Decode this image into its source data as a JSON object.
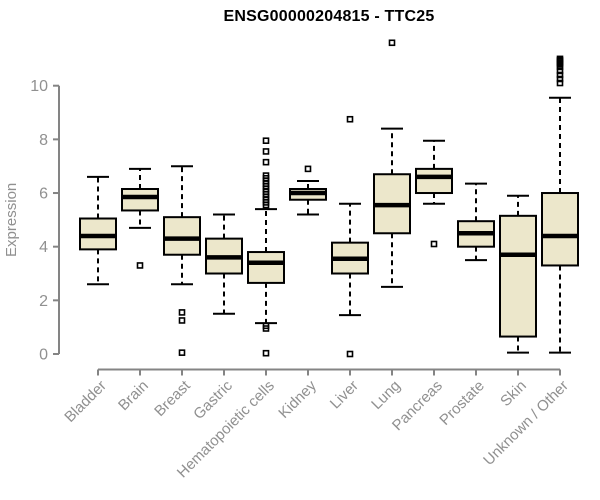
{
  "chart_data": {
    "type": "boxplot",
    "title": "ENSG00000204815 - TTC25",
    "ylabel": "Expression",
    "xlabel": "",
    "ylim": [
      0,
      10
    ],
    "yticks": [
      0,
      2,
      4,
      6,
      8,
      10
    ],
    "grid": false,
    "legend": "none",
    "categories": [
      "Bladder",
      "Brain",
      "Breast",
      "Gastric",
      "Hematopoietic cells",
      "Kidney",
      "Liver",
      "Lung",
      "Pancreas",
      "Prostate",
      "Skin",
      "Unknown / Other"
    ],
    "series": [
      {
        "name": "Bladder",
        "whisker_low": 2.6,
        "q1": 3.9,
        "median": 4.4,
        "q3": 5.05,
        "whisker_high": 6.6,
        "outliers": []
      },
      {
        "name": "Brain",
        "whisker_low": 4.7,
        "q1": 5.35,
        "median": 5.85,
        "q3": 6.15,
        "whisker_high": 6.9,
        "outliers": [
          3.3
        ]
      },
      {
        "name": "Breast",
        "whisker_low": 2.6,
        "q1": 3.7,
        "median": 4.3,
        "q3": 5.1,
        "whisker_high": 7.0,
        "outliers": [
          1.55,
          1.25,
          0.05
        ]
      },
      {
        "name": "Gastric",
        "whisker_low": 1.5,
        "q1": 3.0,
        "median": 3.6,
        "q3": 4.3,
        "whisker_high": 5.2,
        "outliers": []
      },
      {
        "name": "Hematopoietic cells",
        "whisker_low": 1.15,
        "q1": 2.65,
        "median": 3.4,
        "q3": 3.8,
        "whisker_high": 5.4,
        "outliers": [
          7.95,
          7.55,
          7.15,
          6.65,
          6.55,
          6.45,
          6.35,
          6.25,
          6.15,
          6.05,
          5.95,
          5.85,
          5.75,
          5.65,
          5.55,
          1.05,
          0.95,
          0.03
        ]
      },
      {
        "name": "Kidney",
        "whisker_low": 5.2,
        "q1": 5.75,
        "median": 6.0,
        "q3": 6.15,
        "whisker_high": 6.45,
        "outliers": [
          6.9
        ]
      },
      {
        "name": "Liver",
        "whisker_low": 1.45,
        "q1": 3.0,
        "median": 3.55,
        "q3": 4.15,
        "whisker_high": 5.6,
        "outliers": [
          8.75,
          0.0
        ]
      },
      {
        "name": "Lung",
        "whisker_low": 2.5,
        "q1": 4.5,
        "median": 5.55,
        "q3": 6.7,
        "whisker_high": 8.4,
        "outliers": [
          11.6
        ]
      },
      {
        "name": "Pancreas",
        "whisker_low": 5.6,
        "q1": 6.0,
        "median": 6.6,
        "q3": 6.9,
        "whisker_high": 7.95,
        "outliers": [
          4.1
        ]
      },
      {
        "name": "Prostate",
        "whisker_low": 3.5,
        "q1": 4.0,
        "median": 4.5,
        "q3": 4.95,
        "whisker_high": 6.35,
        "outliers": []
      },
      {
        "name": "Skin",
        "whisker_low": 0.05,
        "q1": 0.65,
        "median": 3.7,
        "q3": 5.15,
        "whisker_high": 5.9,
        "outliers": []
      },
      {
        "name": "Unknown / Other",
        "whisker_low": 0.05,
        "q1": 3.3,
        "median": 4.4,
        "q3": 6.0,
        "whisker_high": 9.55,
        "outliers": [
          11.0,
          10.95,
          10.9,
          10.85,
          10.8,
          10.7,
          10.55,
          10.4,
          10.25,
          10.1
        ]
      }
    ],
    "colors": {
      "box_fill": "#ECE7CB",
      "box_stroke": "#000000",
      "median": "#000000",
      "whisker": "#000000",
      "outlier": "#000000",
      "axis": "#848484",
      "tick_text": "#909090",
      "title": "#000000"
    }
  }
}
